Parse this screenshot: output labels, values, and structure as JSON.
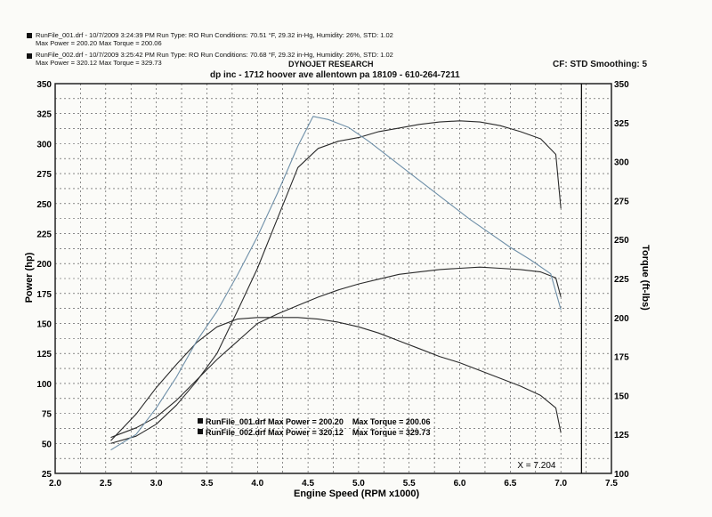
{
  "header": {
    "run1": {
      "line1": "RunFile_001.drf - 10/7/2009 3:24:39 PM  Run Type: RO  Run Conditions: 70.51 °F, 29.32 in-Hg,  Humidity:  26%, STD: 1.02",
      "line2": "Max Power = 200.20  Max Torque = 200.06"
    },
    "run2": {
      "line1": "RunFile_002.drf - 10/7/2009 3:25:42 PM  Run Type: RO  Run Conditions: 70.68 °F, 29.32 in-Hg,  Humidity:  26%, STD: 1.02",
      "line2": "Max Power = 320.12  Max Torque = 329.73"
    },
    "title": "DYNOJET RESEARCH",
    "subtitle": "dp inc - 1712 hoover ave allentown pa 18109 - 610-264-7211",
    "settings": "CF: STD  Smoothing: 5"
  },
  "chart_data": {
    "type": "line",
    "xlabel": "Engine Speed (RPM x1000)",
    "ylabel_left": "Power (hp)",
    "ylabel_right": "Torque (ft-lbs)",
    "xlim": [
      2.0,
      7.5
    ],
    "ylim_left": [
      25,
      350
    ],
    "ylim_right": [
      100,
      350
    ],
    "x_ticks": [
      "2.0",
      "2.5",
      "3.0",
      "3.5",
      "4.0",
      "4.5",
      "5.0",
      "5.5",
      "6.0",
      "6.5",
      "7.0",
      "7.5"
    ],
    "y_left_ticks": [
      "25",
      "50",
      "75",
      "100",
      "125",
      "150",
      "175",
      "200",
      "225",
      "250",
      "275",
      "300",
      "325",
      "350"
    ],
    "y_right_ticks": [
      "100",
      "125",
      "150",
      "175",
      "200",
      "225",
      "250",
      "275",
      "300",
      "325",
      "350"
    ],
    "grid": true,
    "cursor": {
      "x": 7.204,
      "label": "X = 7.204"
    },
    "legend": [
      {
        "text": "RunFile_001.drf Max Power = 200.20    Max Torque = 200.06"
      },
      {
        "text": "RunFile_002.drf Max Power = 320.12    Max Torque = 329.73"
      }
    ],
    "series": [
      {
        "name": "RunFile_001.drf",
        "measure": "Power (hp)",
        "axis": "left",
        "color": "#2a2a2a",
        "x": [
          2.55,
          2.8,
          3.0,
          3.2,
          3.4,
          3.6,
          3.8,
          4.0,
          4.2,
          4.4,
          4.6,
          4.8,
          5.0,
          5.2,
          5.4,
          5.6,
          5.8,
          6.0,
          6.2,
          6.4,
          6.6,
          6.8,
          6.95,
          7.0
        ],
        "y": [
          55,
          63,
          72,
          86,
          103,
          120,
          135,
          150,
          158,
          165,
          172,
          178,
          183,
          187,
          191,
          193,
          195,
          196,
          197,
          196,
          195,
          193,
          188,
          172
        ]
      },
      {
        "name": "RunFile_001.drf",
        "measure": "Torque (ft-lbs)",
        "axis": "right",
        "color": "#2a2a2a",
        "x": [
          2.55,
          2.8,
          3.0,
          3.2,
          3.4,
          3.6,
          3.8,
          4.0,
          4.2,
          4.4,
          4.6,
          4.8,
          5.0,
          5.2,
          5.4,
          5.6,
          5.8,
          6.0,
          6.2,
          6.4,
          6.6,
          6.8,
          6.95,
          7.0
        ],
        "y": [
          121,
          138,
          155,
          170,
          184,
          194,
          199,
          200,
          200,
          200,
          199,
          197,
          194,
          190,
          185,
          180,
          175,
          171,
          166,
          161,
          156,
          150,
          142,
          126
        ]
      },
      {
        "name": "RunFile_002.drf",
        "measure": "Power (hp)",
        "axis": "left",
        "color": "#2a2a2a",
        "x": [
          2.55,
          2.8,
          3.0,
          3.2,
          3.4,
          3.6,
          3.8,
          4.0,
          4.2,
          4.4,
          4.6,
          4.8,
          5.0,
          5.2,
          5.4,
          5.6,
          5.8,
          6.0,
          6.2,
          6.4,
          6.6,
          6.8,
          6.95,
          7.0
        ],
        "y": [
          50,
          56,
          66,
          82,
          102,
          125,
          160,
          196,
          238,
          280,
          296,
          302,
          305,
          310,
          313,
          316,
          318,
          319,
          318,
          315,
          310,
          304,
          291,
          246
        ]
      },
      {
        "name": "RunFile_002.drf",
        "measure": "Torque (ft-lbs)",
        "axis": "right",
        "color": "#6e8fa8",
        "x": [
          2.55,
          2.8,
          3.0,
          3.2,
          3.4,
          3.6,
          3.8,
          4.0,
          4.2,
          4.4,
          4.55,
          4.7,
          4.9,
          5.1,
          5.3,
          5.5,
          5.7,
          5.9,
          6.1,
          6.3,
          6.5,
          6.7,
          6.9,
          7.0
        ],
        "y": [
          115,
          125,
          142,
          162,
          185,
          204,
          227,
          252,
          280,
          310,
          329,
          327,
          322,
          313,
          303,
          293,
          283,
          273,
          263,
          254,
          245,
          237,
          228,
          205
        ]
      }
    ]
  }
}
